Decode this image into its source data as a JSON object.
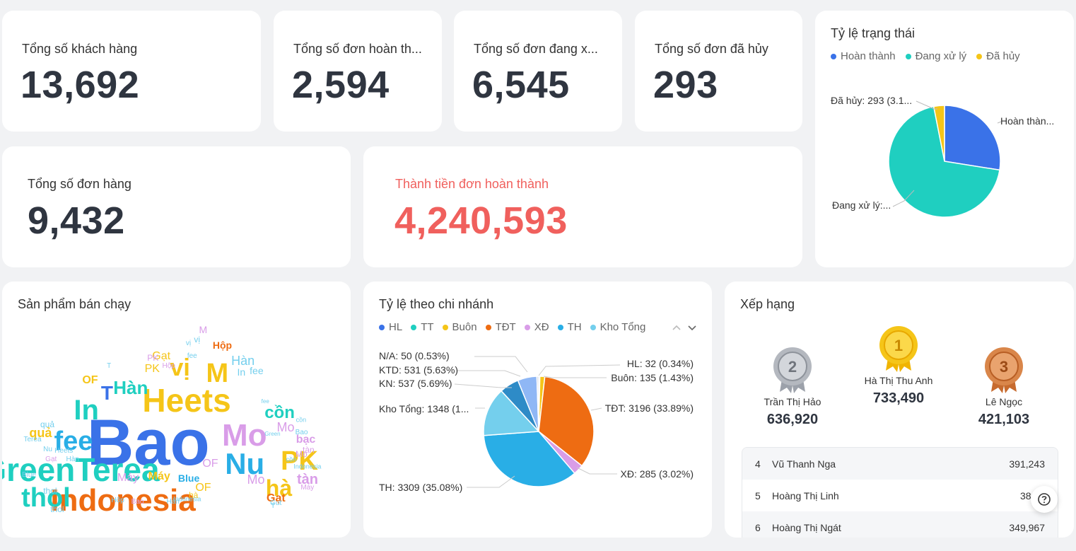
{
  "kpis": {
    "customers": {
      "label": "Tổng số khách hàng",
      "value": "13,692"
    },
    "completed": {
      "label": "Tổng số đơn hoàn th...",
      "value": "2,594"
    },
    "processing": {
      "label": "Tổng số đơn đang x...",
      "value": "6,545"
    },
    "cancelled": {
      "label": "Tổng số đơn đã hủy",
      "value": "293"
    },
    "orders": {
      "label": "Tổng số đơn hàng",
      "value": "9,432"
    },
    "revenue": {
      "label": "Thành tiền đơn hoàn thành",
      "value": "4,240,593"
    }
  },
  "colors": {
    "accent_red": "#f0605d",
    "blue": "#3a72e8",
    "teal": "#1fcfc0",
    "yellow": "#f5c518",
    "orange": "#ee6c12",
    "lilac": "#d99de8",
    "sky": "#29aee6",
    "light_sky": "#74cfed",
    "navy": "#2f3540"
  },
  "status_chart": {
    "title": "Tỷ lệ trạng thái",
    "legend": [
      "Hoàn thành",
      "Đang xử lý",
      "Đã hủy"
    ],
    "labels": {
      "completed": "Hoàn thàn...",
      "processing": "Đang xử lý:...",
      "cancelled": "Đã hủy: 293 (3.1..."
    }
  },
  "branch_chart": {
    "title": "Tỷ lệ theo chi nhánh",
    "legend": [
      "HL",
      "TT",
      "Buôn",
      "TĐT",
      "XĐ",
      "TH",
      "Kho Tổng"
    ],
    "labels": {
      "na": "N/A: 50 (0.53%)",
      "ktd": "KTD: 531 (5.63%)",
      "kn": "KN: 537 (5.69%)",
      "kho": "Kho Tổng: 1348 (1...",
      "th": "TH: 3309 (35.08%)",
      "hl": "HL: 32 (0.34%)",
      "buon": "Buôn: 135 (1.43%)",
      "tdt": "TĐT: 3196 (33.89%)",
      "xd": "XĐ: 285 (3.02%)"
    }
  },
  "chart_data": [
    {
      "type": "pie",
      "title": "Tỷ lệ trạng thái",
      "categories": [
        "Hoàn thành",
        "Đang xử lý",
        "Đã hủy"
      ],
      "values": [
        2594,
        6545,
        293
      ],
      "legend": "top"
    },
    {
      "type": "pie",
      "title": "Tỷ lệ theo chi nhánh",
      "categories": [
        "HL",
        "TT",
        "Buôn",
        "TĐT",
        "XĐ",
        "TH",
        "Kho Tổng",
        "KN",
        "KTD",
        "N/A"
      ],
      "values": [
        32,
        0,
        135,
        3196,
        285,
        3309,
        1348,
        537,
        531,
        50
      ],
      "percentages": [
        0.34,
        0,
        1.43,
        33.89,
        3.02,
        35.08,
        null,
        5.69,
        5.63,
        0.53
      ],
      "legend": "top"
    }
  ],
  "wordcloud": {
    "title": "Sản phẩm bán chạy",
    "words": [
      {
        "text": "Bao",
        "color": "#3a72e8"
      },
      {
        "text": "GreenTerea",
        "color": "#1fcfc0"
      },
      {
        "text": "Indonesia",
        "color": "#ee6c12"
      },
      {
        "text": "Heets",
        "color": "#f5c518"
      },
      {
        "text": "thol",
        "color": "#1fcfc0"
      },
      {
        "text": "Mo",
        "color": "#d99de8"
      },
      {
        "text": "Nu",
        "color": "#29aee6"
      },
      {
        "text": "fee",
        "color": "#29aee6"
      },
      {
        "text": "In",
        "color": "#1fcfc0"
      },
      {
        "text": "T",
        "color": "#3a72e8"
      },
      {
        "text": "Hàn",
        "color": "#1fcfc0"
      },
      {
        "text": "vị",
        "color": "#f5c518"
      },
      {
        "text": "M",
        "color": "#f5c518"
      },
      {
        "text": "PK",
        "color": "#f5c518"
      },
      {
        "text": "hà",
        "color": "#f5c518"
      },
      {
        "text": "cồn",
        "color": "#1fcfc0"
      },
      {
        "text": "quả",
        "color": "#f5c518"
      },
      {
        "text": "tàn",
        "color": "#d99de8"
      },
      {
        "text": "bạc",
        "color": "#d99de8"
      },
      {
        "text": "Gạt",
        "color": "#ee6c12"
      },
      {
        "text": "Hộp",
        "color": "#ee6c12"
      },
      {
        "text": "OF",
        "color": "#f5c518"
      },
      {
        "text": "Máy",
        "color": "#f5c518"
      },
      {
        "text": "Blue",
        "color": "#29aee6"
      },
      {
        "text": "Mo",
        "color": "#d99de8"
      },
      {
        "text": "Hàn",
        "color": "#74cfed"
      },
      {
        "text": "fee",
        "color": "#74cfed"
      },
      {
        "text": "In",
        "color": "#74cfed"
      },
      {
        "text": "Gạt",
        "color": "#f5c518"
      },
      {
        "text": "PK",
        "color": "#f5c518"
      },
      {
        "text": "Máy",
        "color": "#d99de8"
      },
      {
        "text": "OF",
        "color": "#d99de8"
      },
      {
        "text": "Mo",
        "color": "#d99de8"
      },
      {
        "text": "Heets",
        "color": "#74cfed"
      },
      {
        "text": "Indonesia",
        "color": "#74cfed"
      },
      {
        "text": "Green",
        "color": "#74cfed"
      },
      {
        "text": "quả",
        "color": "#74cfed"
      },
      {
        "text": "Hộp",
        "color": "#d99de8"
      },
      {
        "text": "Bao",
        "color": "#74cfed"
      },
      {
        "text": "thol",
        "color": "#74cfed"
      },
      {
        "text": "Terea",
        "color": "#74cfed"
      },
      {
        "text": "Máy",
        "color": "#d99de8"
      },
      {
        "text": "Gạt",
        "color": "#d99de8"
      },
      {
        "text": "Hàn",
        "color": "#74cfed"
      },
      {
        "text": "tàn",
        "color": "#d99de8"
      },
      {
        "text": "Blue",
        "color": "#74cfed"
      },
      {
        "text": "vị",
        "color": "#74cfed"
      },
      {
        "text": "hà",
        "color": "#f5c518"
      },
      {
        "text": "PK",
        "color": "#d99de8"
      },
      {
        "text": "cồn",
        "color": "#74cfed"
      },
      {
        "text": "Nu",
        "color": "#74cfed"
      },
      {
        "text": "T",
        "color": "#74cfed"
      },
      {
        "text": "M",
        "color": "#d99de8"
      },
      {
        "text": "Indonesia",
        "color": "#74cfed"
      },
      {
        "text": "OF",
        "color": "#f5c518"
      },
      {
        "text": "Gut",
        "color": "#74cfed"
      },
      {
        "text": "Hộp",
        "color": "#74cfed"
      },
      {
        "text": "Bao",
        "color": "#d99de8"
      },
      {
        "text": "Hàn",
        "color": "#74cfed"
      },
      {
        "text": "Mo",
        "color": "#d99de8"
      },
      {
        "text": "fee",
        "color": "#74cfed"
      },
      {
        "text": "cồn",
        "color": "#74cfed"
      },
      {
        "text": "thol",
        "color": "#74cfed"
      },
      {
        "text": "T",
        "color": "#74cfed"
      },
      {
        "text": "fee",
        "color": "#74cfed"
      },
      {
        "text": "vị",
        "color": "#74cfed"
      }
    ]
  },
  "ranking": {
    "title": "Xếp hạng",
    "podium": [
      {
        "rank": "1",
        "name": "Hà Thị Thu Anh",
        "value": "733,490",
        "color": "#f5c518"
      },
      {
        "rank": "2",
        "name": "Trần Thị Hảo",
        "value": "636,920",
        "color": "#a9adb5"
      },
      {
        "rank": "3",
        "name": "Lê Ngọc",
        "value": "421,103",
        "color": "#d9864a"
      }
    ],
    "rows": [
      {
        "rank": "4",
        "name": "Vũ Thanh Nga",
        "value": "391,243"
      },
      {
        "rank": "5",
        "name": "Hoàng Thị Linh",
        "value": "386,7"
      },
      {
        "rank": "6",
        "name": "Hoàng Thị Ngát",
        "value": "349,967"
      }
    ]
  },
  "icons": {
    "help": "help-circle-icon",
    "legend_prev": "chevron-up-icon",
    "legend_next": "chevron-down-icon"
  }
}
